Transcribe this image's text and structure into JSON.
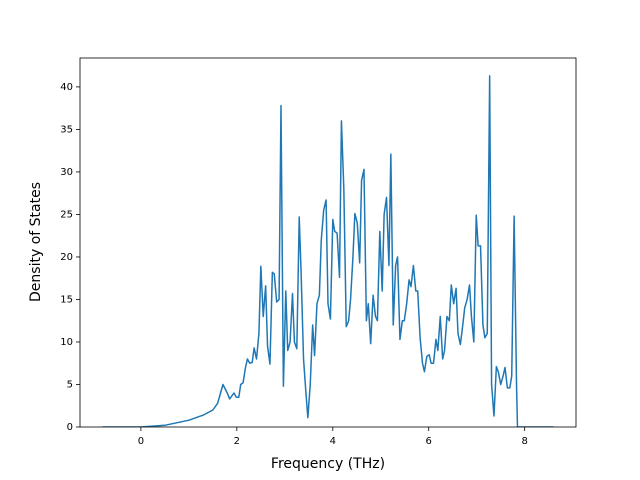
{
  "chart_data": {
    "type": "line",
    "xlabel": "Frequency (THz)",
    "ylabel": "Density of States",
    "color": "#1f77b4",
    "grid": false,
    "xlim": [
      -1.27,
      9.07
    ],
    "ylim": [
      0,
      43.4
    ],
    "xticks": [
      0,
      2,
      4,
      6,
      8
    ],
    "yticks": [
      0,
      5,
      10,
      15,
      20,
      25,
      30,
      35,
      40
    ],
    "x": [
      -0.8,
      0,
      0.5,
      1.0,
      1.3,
      1.5,
      1.6,
      1.71,
      1.8,
      1.85,
      1.94,
      1.99,
      2.04,
      2.08,
      2.13,
      2.18,
      2.22,
      2.27,
      2.32,
      2.36,
      2.41,
      2.46,
      2.5,
      2.55,
      2.6,
      2.64,
      2.69,
      2.74,
      2.78,
      2.83,
      2.88,
      2.92,
      2.97,
      3.02,
      3.06,
      3.11,
      3.16,
      3.2,
      3.25,
      3.3,
      3.34,
      3.39,
      3.44,
      3.48,
      3.53,
      3.58,
      3.62,
      3.67,
      3.72,
      3.76,
      3.81,
      3.86,
      3.9,
      3.95,
      4.0,
      4.04,
      4.09,
      4.14,
      4.18,
      4.23,
      4.28,
      4.33,
      4.37,
      4.42,
      4.46,
      4.51,
      4.56,
      4.6,
      4.65,
      4.7,
      4.74,
      4.79,
      4.84,
      4.89,
      4.93,
      4.98,
      5.03,
      5.07,
      5.12,
      5.17,
      5.21,
      5.26,
      5.31,
      5.35,
      5.4,
      5.45,
      5.49,
      5.54,
      5.59,
      5.63,
      5.68,
      5.73,
      5.77,
      5.82,
      5.87,
      5.91,
      5.96,
      6.01,
      6.05,
      6.1,
      6.15,
      6.19,
      6.24,
      6.29,
      6.33,
      6.38,
      6.43,
      6.47,
      6.52,
      6.57,
      6.61,
      6.66,
      6.71,
      6.75,
      6.8,
      6.85,
      6.89,
      6.94,
      6.99,
      7.03,
      7.08,
      7.13,
      7.17,
      7.22,
      7.27,
      7.31,
      7.36,
      7.41,
      7.45,
      7.5,
      7.55,
      7.59,
      7.64,
      7.69,
      7.73,
      7.78,
      7.83,
      7.85,
      8.6
    ],
    "values": [
      0,
      0,
      0.2,
      0.8,
      1.4,
      2.0,
      2.8,
      5.0,
      4.0,
      3.3,
      4.0,
      3.5,
      3.5,
      5.0,
      5.2,
      7.0,
      8.0,
      7.5,
      7.6,
      9.3,
      8.0,
      11,
      18.9,
      13,
      16.6,
      9.5,
      7.4,
      18.2,
      18,
      14.7,
      15,
      37.8,
      4.8,
      16,
      9,
      10,
      15.7,
      10,
      9.2,
      24.7,
      18,
      8,
      4,
      1.1,
      5,
      12,
      8.4,
      14.5,
      15.5,
      22,
      25.5,
      26.7,
      14.5,
      12.7,
      24.4,
      23,
      22.8,
      17.6,
      36,
      28,
      11.8,
      12.5,
      15,
      20,
      25.1,
      24,
      19.3,
      29,
      30.3,
      12.5,
      14.5,
      9.8,
      15.5,
      13,
      12.5,
      23,
      16,
      25,
      27,
      19,
      32.1,
      12,
      19,
      20,
      10.3,
      12.5,
      12.5,
      14.5,
      17.3,
      16.5,
      19,
      16,
      16,
      10.5,
      7.5,
      6.5,
      8.3,
      8.5,
      7.5,
      7.5,
      10.3,
      9,
      13,
      8,
      9,
      13,
      12.5,
      16.7,
      14.5,
      16.3,
      11,
      9.7,
      12,
      14,
      15,
      16.7,
      13,
      10,
      24.9,
      21.3,
      21.3,
      12,
      10.5,
      11,
      41.3,
      5,
      1.3,
      7.1,
      6.5,
      5,
      6,
      7,
      4.6,
      4.6,
      6,
      24.8,
      5,
      0,
      0
    ]
  }
}
